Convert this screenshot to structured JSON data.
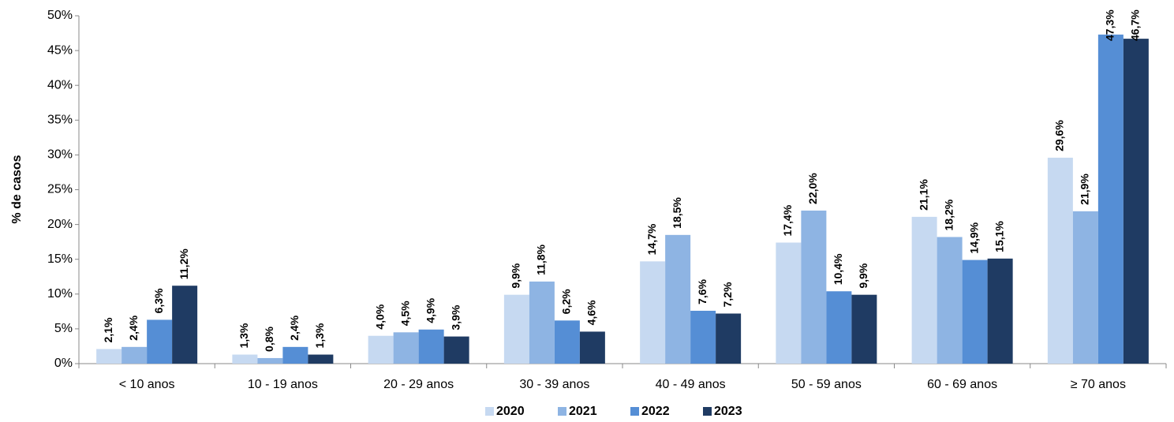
{
  "chart_data": {
    "type": "bar",
    "y_label": "% de casos",
    "categories": [
      "< 10 anos",
      "10 - 19 anos",
      "20 - 29 anos",
      "30 - 39 anos",
      "40 - 49 anos",
      "50 - 59 anos",
      "60 - 69 anos",
      "≥ 70 anos"
    ],
    "series": [
      {
        "name": "2020",
        "color": "#c6d9f1",
        "values": [
          2.1,
          1.3,
          4.0,
          9.9,
          14.7,
          17.4,
          21.1,
          29.6
        ],
        "value_labels": [
          "2,1%",
          "1,3%",
          "4,0%",
          "9,9%",
          "14,7%",
          "17,4%",
          "21,1%",
          "29,6%"
        ]
      },
      {
        "name": "2021",
        "color": "#8eb4e3",
        "values": [
          2.4,
          0.8,
          4.5,
          11.8,
          18.5,
          22.0,
          18.2,
          21.9
        ],
        "value_labels": [
          "2,4%",
          "0,8%",
          "4,5%",
          "11,8%",
          "18,5%",
          "22,0%",
          "18,2%",
          "21,9%"
        ]
      },
      {
        "name": "2022",
        "color": "#558ed5",
        "values": [
          6.3,
          2.4,
          4.9,
          6.2,
          7.6,
          10.4,
          14.9,
          47.3
        ],
        "value_labels": [
          "6,3%",
          "2,4%",
          "4,9%",
          "6,2%",
          "7,6%",
          "10,4%",
          "14,9%",
          "47,3%"
        ]
      },
      {
        "name": "2023",
        "color": "#1f3b63",
        "values": [
          11.2,
          1.3,
          3.9,
          4.6,
          7.2,
          9.9,
          15.1,
          46.7
        ],
        "value_labels": [
          "11,2%",
          "1,3%",
          "3,9%",
          "4,6%",
          "7,2%",
          "9,9%",
          "15,1%",
          "46,7%"
        ]
      }
    ],
    "ylim": [
      0,
      50
    ],
    "yticks": [
      {
        "value": 0,
        "label": "0%"
      },
      {
        "value": 5,
        "label": "5%"
      },
      {
        "value": 10,
        "label": "10%"
      },
      {
        "value": 15,
        "label": "15%"
      },
      {
        "value": 20,
        "label": "20%"
      },
      {
        "value": 25,
        "label": "25%"
      },
      {
        "value": 30,
        "label": "30%"
      },
      {
        "value": 35,
        "label": "35%"
      },
      {
        "value": 40,
        "label": "40%"
      },
      {
        "value": 45,
        "label": "45%"
      },
      {
        "value": 50,
        "label": "50%"
      }
    ],
    "grid": false
  }
}
